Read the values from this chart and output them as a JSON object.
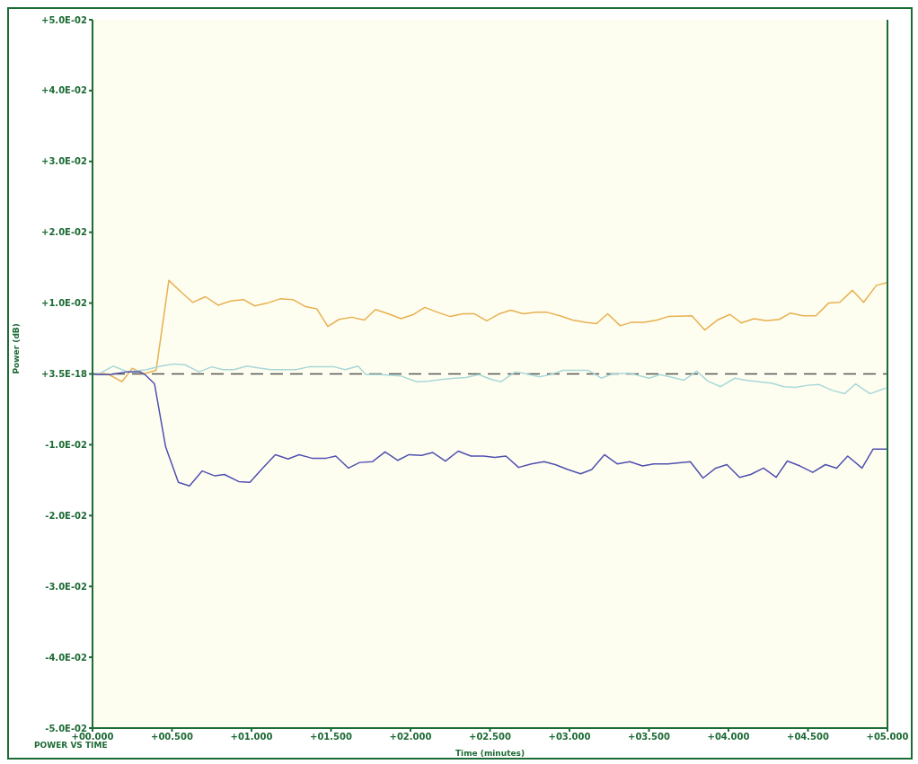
{
  "chart_data": {
    "type": "line",
    "title": "POWER VS TIME",
    "xlabel": "Time (minutes)",
    "ylabel": "Power (dB)",
    "xlim": [
      0,
      5
    ],
    "xticks": [
      {
        "value": 0,
        "label": "+00.000"
      },
      {
        "value": 0.5,
        "label": "+00.500"
      },
      {
        "value": 1,
        "label": "+01.000"
      },
      {
        "value": 1.5,
        "label": "+01.500"
      },
      {
        "value": 2,
        "label": "+02.000"
      },
      {
        "value": 2.5,
        "label": "+02.500"
      },
      {
        "value": 3,
        "label": "+03.000"
      },
      {
        "value": 3.5,
        "label": "+03.500"
      },
      {
        "value": 4,
        "label": "+04.000"
      },
      {
        "value": 4.5,
        "label": "+04.500"
      },
      {
        "value": 5,
        "label": "+05.000"
      }
    ],
    "ylim": [
      -0.05,
      0.05
    ],
    "yticks": [
      {
        "value": -0.05,
        "label": "-5.0E-02"
      },
      {
        "value": -0.04,
        "label": "-4.0E-02"
      },
      {
        "value": -0.03,
        "label": "-3.0E-02"
      },
      {
        "value": -0.02,
        "label": "-2.0E-02"
      },
      {
        "value": -0.01,
        "label": "-1.0E-02"
      },
      {
        "value": 0,
        "label": "+3.5E-18"
      },
      {
        "value": 0.01,
        "label": "+1.0E-02"
      },
      {
        "value": 0.02,
        "label": "+2.0E-02"
      },
      {
        "value": 0.03,
        "label": "+3.0E-02"
      },
      {
        "value": 0.04,
        "label": "+4.0E-02"
      },
      {
        "value": 0.05,
        "label": "+5.0E-02"
      }
    ],
    "ref_lines": [
      {
        "axis": "y",
        "value": 0,
        "color": "#555555",
        "line_style": "dashed"
      }
    ],
    "grid": false,
    "legend": false,
    "marker": "none",
    "line_style": "solid",
    "series": [
      {
        "color": "#e8b050",
        "x": [
          0,
          0.095,
          0.185,
          0.25,
          0.32,
          0.4,
          0.48,
          0.56,
          0.63,
          0.71,
          0.79,
          0.87,
          0.95,
          1.02,
          1.1,
          1.18,
          1.26,
          1.34,
          1.41,
          1.48,
          1.55,
          1.63,
          1.71,
          1.78,
          1.86,
          1.94,
          2.02,
          2.09,
          2.17,
          2.25,
          2.33,
          2.4,
          2.48,
          2.56,
          2.63,
          2.71,
          2.79,
          2.86,
          2.94,
          3.02,
          3.1,
          3.17,
          3.24,
          3.32,
          3.39,
          3.47,
          3.55,
          3.62,
          3.77,
          3.85,
          3.93,
          4.01,
          4.08,
          4.16,
          4.24,
          4.32,
          4.39,
          4.47,
          4.55,
          4.63,
          4.7,
          4.78,
          4.85,
          4.93,
          5.0
        ],
        "values": [
          0,
          0,
          -0.0011,
          0.0008,
          0,
          0.0005,
          0.0132,
          0.0115,
          0.0101,
          0.0109,
          0.0097,
          0.0103,
          0.0105,
          0.0096,
          0.01,
          0.0106,
          0.0105,
          0.0095,
          0.0092,
          0.0067,
          0.0077,
          0.008,
          0.0076,
          0.0091,
          0.0085,
          0.0078,
          0.0084,
          0.0094,
          0.0087,
          0.0081,
          0.0085,
          0.0085,
          0.0075,
          0.0085,
          0.009,
          0.0085,
          0.0087,
          0.0087,
          0.0082,
          0.0076,
          0.0073,
          0.0071,
          0.0085,
          0.0068,
          0.0073,
          0.0073,
          0.0076,
          0.0081,
          0.0082,
          0.0062,
          0.0076,
          0.0084,
          0.0072,
          0.0078,
          0.0075,
          0.0077,
          0.0086,
          0.0082,
          0.0082,
          0.01,
          0.0101,
          0.0118,
          0.0101,
          0.0125,
          0.0129
        ]
      },
      {
        "color": "#a8d8d8",
        "x": [
          0,
          0.03,
          0.13,
          0.22,
          0.34,
          0.43,
          0.51,
          0.58,
          0.67,
          0.75,
          0.82,
          0.89,
          0.97,
          1.06,
          1.12,
          1.2,
          1.28,
          1.36,
          1.45,
          1.52,
          1.59,
          1.67,
          1.72,
          1.81,
          1.94,
          2.04,
          2.12,
          2.19,
          2.28,
          2.35,
          2.43,
          2.51,
          2.57,
          2.66,
          2.73,
          2.81,
          2.88,
          2.96,
          3.03,
          3.12,
          3.2,
          3.27,
          3.38,
          3.5,
          3.57,
          3.65,
          3.72,
          3.8,
          3.87,
          3.95,
          4.04,
          4.11,
          4.19,
          4.27,
          4.35,
          4.42,
          4.5,
          4.57,
          4.65,
          4.73,
          4.8,
          4.89,
          4.99
        ],
        "values": [
          0,
          -0.0001,
          0.0011,
          0.0003,
          0.0006,
          0.0011,
          0.0014,
          0.0013,
          0.0003,
          0.001,
          0.0006,
          0.0006,
          0.0011,
          0.0008,
          0.0006,
          0.0006,
          0.0006,
          0.001,
          0.001,
          0.001,
          0.0006,
          0.0011,
          -0.0001,
          -0.0001,
          -0.0003,
          -0.0011,
          -0.001,
          -0.0008,
          -0.0006,
          -0.0005,
          -0.0001,
          -0.0008,
          -0.0011,
          0.0003,
          0,
          -0.0004,
          -0.0001,
          0.0005,
          0.0005,
          0.0005,
          -0.0006,
          0,
          0.0001,
          -0.0006,
          -0.0001,
          -0.0005,
          -0.0009,
          0.0004,
          -0.001,
          -0.0018,
          -0.0006,
          -0.0009,
          -0.0011,
          -0.0013,
          -0.0018,
          -0.0019,
          -0.0016,
          -0.0015,
          -0.0023,
          -0.0028,
          -0.0014,
          -0.0028,
          -0.002
        ]
      },
      {
        "color": "#5050b0",
        "x": [
          0,
          0.03,
          0.11,
          0.22,
          0.3,
          0.33,
          0.39,
          0.46,
          0.54,
          0.61,
          0.69,
          0.77,
          0.83,
          0.92,
          0.99,
          1.07,
          1.15,
          1.23,
          1.3,
          1.38,
          1.47,
          1.53,
          1.61,
          1.68,
          1.76,
          1.84,
          1.92,
          1.99,
          2.07,
          2.14,
          2.22,
          2.3,
          2.38,
          2.46,
          2.53,
          2.6,
          2.68,
          2.76,
          2.84,
          2.91,
          2.99,
          3.07,
          3.14,
          3.22,
          3.3,
          3.38,
          3.46,
          3.53,
          3.62,
          3.76,
          3.84,
          3.92,
          3.99,
          4.07,
          4.14,
          4.22,
          4.3,
          4.37,
          4.45,
          4.53,
          4.61,
          4.68,
          4.75,
          4.84,
          4.91,
          5.0
        ],
        "values": [
          0,
          -0.0001,
          -0.0001,
          0.0003,
          0.0003,
          -0.0001,
          -0.0014,
          -0.0103,
          -0.0153,
          -0.0158,
          -0.0137,
          -0.0144,
          -0.0142,
          -0.0152,
          -0.0153,
          -0.0133,
          -0.0114,
          -0.012,
          -0.0114,
          -0.0119,
          -0.0119,
          -0.0116,
          -0.0133,
          -0.0125,
          -0.0124,
          -0.011,
          -0.0122,
          -0.0114,
          -0.0115,
          -0.0111,
          -0.0123,
          -0.0109,
          -0.0116,
          -0.0116,
          -0.0118,
          -0.0116,
          -0.0132,
          -0.0127,
          -0.0124,
          -0.0128,
          -0.0135,
          -0.0141,
          -0.0135,
          -0.0114,
          -0.0127,
          -0.0124,
          -0.013,
          -0.0127,
          -0.0127,
          -0.0124,
          -0.0147,
          -0.0133,
          -0.0128,
          -0.0146,
          -0.0142,
          -0.0133,
          -0.0146,
          -0.0123,
          -0.013,
          -0.0139,
          -0.0128,
          -0.0133,
          -0.0116,
          -0.0133,
          -0.0106,
          -0.0106
        ]
      }
    ]
  }
}
